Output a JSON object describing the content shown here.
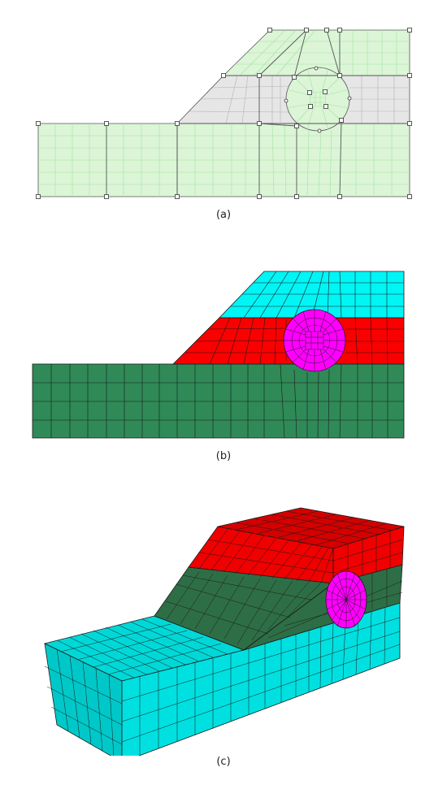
{
  "figure": {
    "panels": [
      {
        "label": "(a)",
        "description_colors": {
          "fill_light": "#d9f7d4",
          "fill_gray": "#e6e6e6",
          "grid": "#9fdf9a",
          "edge": "#555555"
        }
      },
      {
        "label": "(b)",
        "description_colors": {
          "top": "#00f6f6",
          "middle": "#ff0000",
          "bottom": "#2e8b57",
          "inclusion": "#ff00ff"
        }
      },
      {
        "label": "(c)",
        "description_colors": {
          "top": "#ff0000",
          "middle": "#2e7048",
          "bottom": "#00e0e0",
          "inclusion": "#ff00ff"
        }
      }
    ]
  }
}
